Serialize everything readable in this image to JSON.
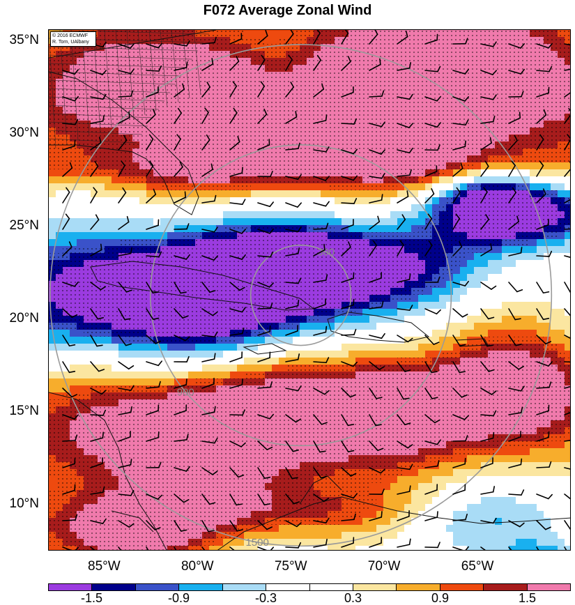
{
  "title": "F072 Average Zonal Wind",
  "credit": {
    "line1": "© 2016 ECMWF",
    "line2": "R. Torn, UAlbany"
  },
  "lat_labels": [
    {
      "text": "35°N",
      "lat": 35
    },
    {
      "text": "30°N",
      "lat": 30
    },
    {
      "text": "25°N",
      "lat": 25
    },
    {
      "text": "20°N",
      "lat": 20
    },
    {
      "text": "15°N",
      "lat": 15
    },
    {
      "text": "10°N",
      "lat": 10
    }
  ],
  "lon_labels": [
    {
      "text": "85°W",
      "lon": -85
    },
    {
      "text": "80°W",
      "lon": -80
    },
    {
      "text": "75°W",
      "lon": -75
    },
    {
      "text": "70°W",
      "lon": -70
    },
    {
      "text": "65°W",
      "lon": -65
    }
  ],
  "map_extent": {
    "lon_min": -88,
    "lon_max": -60,
    "lat_min": 7.5,
    "lat_max": 35.6
  },
  "range_ring_center": {
    "lon": -74.5,
    "lat": 21.3
  },
  "range_rings": [
    {
      "label": "300",
      "radius_km": 300
    },
    {
      "label": "900",
      "radius_km": 900
    },
    {
      "label": "1500",
      "radius_km": 1500
    }
  ],
  "colorbar": {
    "colors": [
      "#9b3be0",
      "#00008b",
      "#3a52c9",
      "#19b0ef",
      "#a9dcf6",
      "#ffffff",
      "#ffffff",
      "#fbe6a0",
      "#f7ad2c",
      "#ee4a0f",
      "#a71c1c",
      "#f07aac"
    ],
    "labels": [
      "-1.5",
      "-0.9",
      "-0.3",
      "0.3",
      "0.9",
      "1.5"
    ]
  },
  "colors": {
    "ring": "#9a9a9a",
    "coast": "#111111",
    "barb": "#000000"
  }
}
